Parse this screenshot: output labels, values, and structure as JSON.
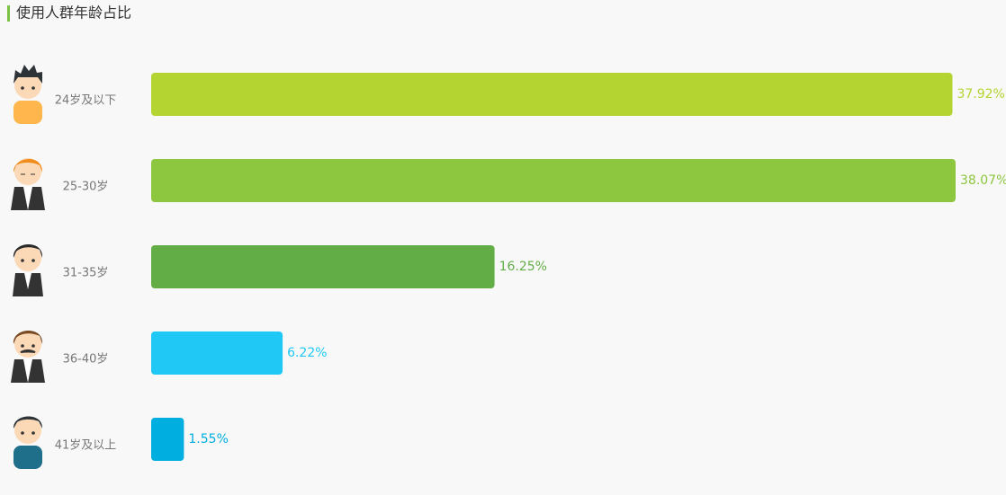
{
  "chart_data": {
    "type": "hbar",
    "title": "使用人群年龄占比",
    "categories": [
      "24岁及以下",
      "25-30岁",
      "31-35岁",
      "36-40岁",
      "41岁及以上"
    ],
    "values": [
      37.92,
      38.07,
      16.25,
      6.22,
      1.55
    ],
    "value_labels": [
      "37.92%",
      "38.07%",
      "16.25%",
      "6.22%",
      "1.55%"
    ],
    "colors": [
      "#b4d432",
      "#8dc63f",
      "#63ad47",
      "#20c9f5",
      "#00aee0"
    ]
  }
}
